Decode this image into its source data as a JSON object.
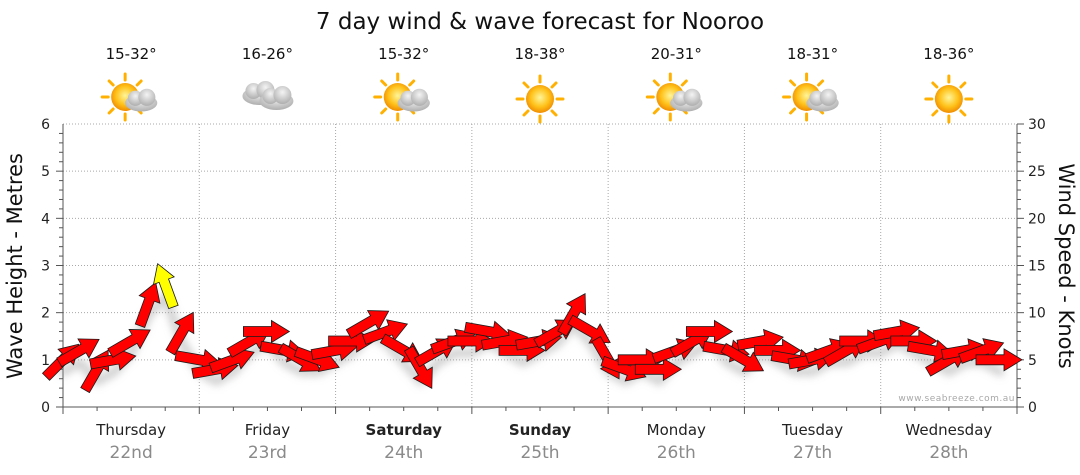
{
  "chart_data": {
    "type": "line",
    "title": "7 day wind & wave forecast for Nooroo",
    "ylabel_left": "Wave Height - Metres",
    "ylabel_right": "Wind Speed - Knots",
    "ylim_left": [
      0,
      6
    ],
    "ylim_right": [
      0,
      30
    ],
    "yticks_left": [
      "0",
      "1",
      "2",
      "3",
      "4",
      "5",
      "6"
    ],
    "yticks_right": [
      "0",
      "5",
      "10",
      "15",
      "20",
      "25",
      "30"
    ],
    "grid": true,
    "credit": "www.seabreeze.com.au",
    "days": [
      {
        "name": "Thursday",
        "date": "22nd",
        "temp": "15-32°",
        "weather": "sun-cloud-icon",
        "bold": false
      },
      {
        "name": "Friday",
        "date": "23rd",
        "temp": "16-26°",
        "weather": "cloud-icon",
        "bold": false
      },
      {
        "name": "Saturday",
        "date": "24th",
        "temp": "15-32°",
        "weather": "sun-cloud-icon",
        "bold": true
      },
      {
        "name": "Sunday",
        "date": "25th",
        "temp": "18-38°",
        "weather": "sun-icon",
        "bold": true
      },
      {
        "name": "Monday",
        "date": "26th",
        "temp": "20-31°",
        "weather": "sun-cloud-icon",
        "bold": false
      },
      {
        "name": "Tuesday",
        "date": "27th",
        "temp": "18-31°",
        "weather": "sun-cloud-icon",
        "bold": false
      },
      {
        "name": "Wednesday",
        "date": "28th",
        "temp": "18-36°",
        "weather": "sun-icon",
        "bold": false
      }
    ],
    "series": [
      {
        "name": "Wind Speed - Knots",
        "color": "#ff0000",
        "highlight_color": "#ffff00",
        "highlight_over_knots": 12,
        "time_hours": [
          0,
          3,
          6,
          9,
          12,
          15,
          18,
          21,
          24,
          27,
          30,
          33,
          36,
          39,
          42,
          45,
          48,
          51,
          54,
          57,
          60,
          63,
          66,
          69,
          72,
          75,
          78,
          81,
          84,
          87,
          90,
          93,
          96,
          99,
          102,
          105,
          108,
          111,
          114,
          117,
          120,
          123,
          126,
          129,
          132,
          135,
          138,
          141,
          144,
          147,
          150,
          153,
          156,
          159,
          162,
          165
        ],
        "knots": [
          5,
          6,
          4,
          5,
          7,
          11,
          13,
          8,
          5,
          4,
          5,
          7,
          8,
          6,
          5,
          5,
          6,
          7,
          9,
          8,
          6,
          4,
          6,
          7,
          7,
          8,
          7,
          6,
          7,
          8,
          10,
          8,
          5,
          4,
          5,
          4,
          6,
          7,
          8,
          6,
          5,
          7,
          6,
          5,
          5,
          6,
          6,
          7,
          7,
          8,
          7,
          6,
          5,
          6,
          6,
          5
        ],
        "direction_deg": [
          45,
          60,
          30,
          80,
          60,
          20,
          340,
          30,
          100,
          80,
          70,
          60,
          90,
          100,
          120,
          110,
          80,
          90,
          60,
          70,
          120,
          150,
          60,
          70,
          90,
          100,
          80,
          90,
          80,
          60,
          30,
          120,
          150,
          110,
          90,
          90,
          70,
          60,
          90,
          100,
          120,
          80,
          90,
          100,
          80,
          70,
          60,
          90,
          70,
          80,
          90,
          100,
          60,
          80,
          70,
          90
        ]
      }
    ]
  }
}
